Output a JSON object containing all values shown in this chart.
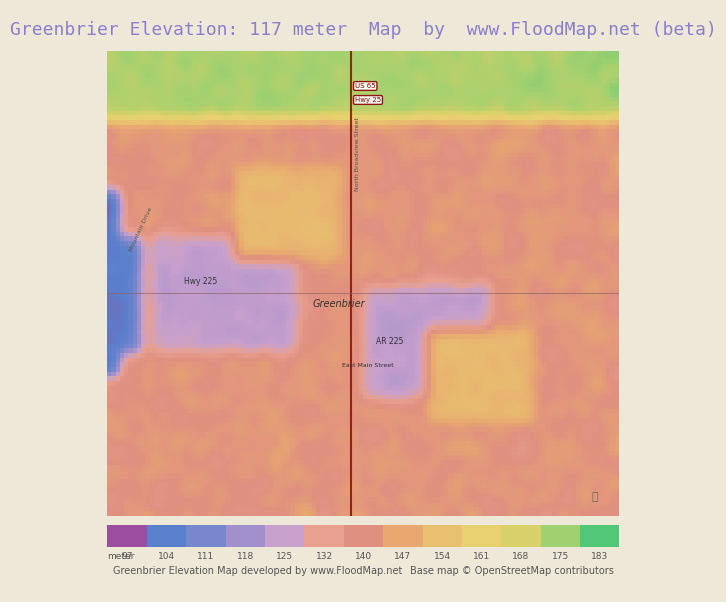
{
  "title": "Greenbrier Elevation: 117 meter  Map  by  www.FloodMap.net (beta)",
  "title_color": "#8B7FCC",
  "title_fontsize": 13,
  "bg_color": "#EEE8D8",
  "map_bg": "#C8A0D0",
  "colorbar_values": [
    97,
    104,
    111,
    118,
    125,
    132,
    140,
    147,
    154,
    161,
    168,
    175,
    183
  ],
  "colorbar_colors": [
    "#9B4EA0",
    "#5A7FCC",
    "#7888CC",
    "#A090CC",
    "#C8A0CC",
    "#E8A090",
    "#E09080",
    "#E8A870",
    "#E8C070",
    "#E8D070",
    "#D8D068",
    "#A0D070",
    "#50C878"
  ],
  "footer_left": "Greenbrier Elevation Map developed by www.FloodMap.net",
  "footer_right": "Base map © OpenStreetMap contributors",
  "footer_fontsize": 7,
  "meter_label": "meter",
  "figwidth": 5.12,
  "figheight": 5.82
}
